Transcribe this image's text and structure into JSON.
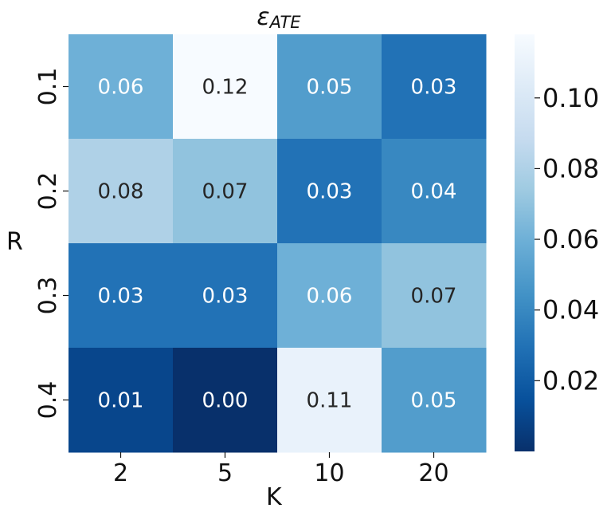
{
  "chart_data": {
    "type": "heatmap",
    "title_symbol": "ε",
    "title_subscript": "ATE",
    "xlabel": "K",
    "ylabel": "R",
    "x_categories": [
      "2",
      "5",
      "10",
      "20"
    ],
    "y_categories": [
      "0.1",
      "0.2",
      "0.3",
      "0.4"
    ],
    "values": [
      [
        0.06,
        0.12,
        0.05,
        0.03
      ],
      [
        0.08,
        0.07,
        0.03,
        0.04
      ],
      [
        0.03,
        0.03,
        0.06,
        0.07
      ],
      [
        0.01,
        0.0,
        0.11,
        0.05
      ]
    ],
    "value_labels": [
      [
        "0.06",
        "0.12",
        "0.05",
        "0.03"
      ],
      [
        "0.08",
        "0.07",
        "0.03",
        "0.04"
      ],
      [
        "0.03",
        "0.03",
        "0.06",
        "0.07"
      ],
      [
        "0.01",
        "0.00",
        "0.11",
        "0.05"
      ]
    ],
    "colorscale": "Blues_r",
    "vmin": 0.0,
    "vmax": 0.118,
    "colorbar_ticks": [
      0.02,
      0.04,
      0.06,
      0.08,
      0.1
    ],
    "colorbar_tick_labels": [
      "0.02",
      "0.04",
      "0.06",
      "0.08",
      "0.10"
    ],
    "colors": {
      "low": "#08306b",
      "high": "#f7fbff",
      "text_dark": "#262626",
      "text_light": "#ffffff"
    }
  }
}
